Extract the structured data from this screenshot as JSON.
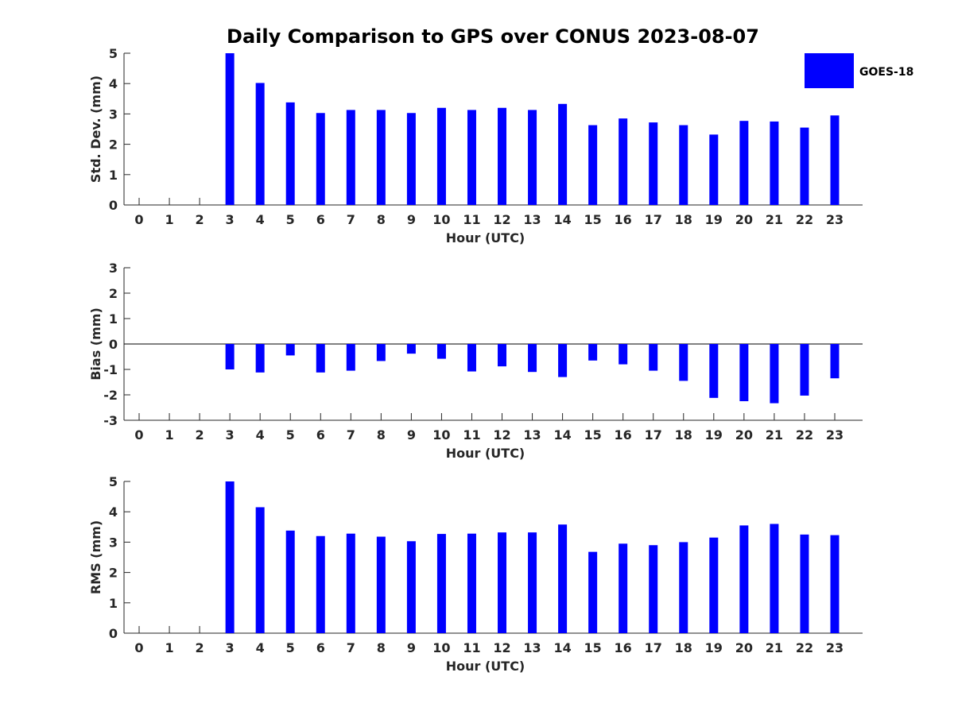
{
  "title": "Daily Comparison to GPS over CONUS 2023-08-07",
  "legend": {
    "label": "GOES-18",
    "color": "#0000ff",
    "placement": "top-right"
  },
  "chart_data": [
    {
      "type": "bar",
      "xlabel": "Hour (UTC)",
      "ylabel": "Std. Dev. (mm)",
      "ylim": [
        0,
        5
      ],
      "yticks": [
        0,
        1,
        2,
        3,
        4,
        5
      ],
      "categories": [
        0,
        1,
        2,
        3,
        4,
        5,
        6,
        7,
        8,
        9,
        10,
        11,
        12,
        13,
        14,
        15,
        16,
        17,
        18,
        19,
        20,
        21,
        22,
        23
      ],
      "series": [
        {
          "name": "GOES-18",
          "values": [
            null,
            null,
            null,
            5.0,
            4.02,
            3.38,
            3.03,
            3.13,
            3.13,
            3.03,
            3.2,
            3.13,
            3.2,
            3.13,
            3.33,
            2.63,
            2.85,
            2.72,
            2.63,
            2.32,
            2.77,
            2.75,
            2.55,
            2.95
          ]
        }
      ]
    },
    {
      "type": "bar",
      "xlabel": "Hour (UTC)",
      "ylabel": "Bias (mm)",
      "ylim": [
        -3,
        3
      ],
      "yticks": [
        -3,
        -2,
        -1,
        0,
        1,
        2,
        3
      ],
      "categories": [
        0,
        1,
        2,
        3,
        4,
        5,
        6,
        7,
        8,
        9,
        10,
        11,
        12,
        13,
        14,
        15,
        16,
        17,
        18,
        19,
        20,
        21,
        22,
        23
      ],
      "series": [
        {
          "name": "GOES-18",
          "values": [
            null,
            null,
            null,
            -1.0,
            -1.12,
            -0.45,
            -1.12,
            -1.05,
            -0.67,
            -0.38,
            -0.58,
            -1.08,
            -0.88,
            -1.1,
            -1.3,
            -0.65,
            -0.8,
            -1.05,
            -1.45,
            -2.12,
            -2.25,
            -2.33,
            -2.03,
            -1.35
          ]
        }
      ]
    },
    {
      "type": "bar",
      "xlabel": "Hour (UTC)",
      "ylabel": "RMS (mm)",
      "ylim": [
        0,
        5
      ],
      "yticks": [
        0,
        1,
        2,
        3,
        4,
        5
      ],
      "categories": [
        0,
        1,
        2,
        3,
        4,
        5,
        6,
        7,
        8,
        9,
        10,
        11,
        12,
        13,
        14,
        15,
        16,
        17,
        18,
        19,
        20,
        21,
        22,
        23
      ],
      "series": [
        {
          "name": "GOES-18",
          "values": [
            null,
            null,
            null,
            5.0,
            4.15,
            3.38,
            3.2,
            3.28,
            3.18,
            3.03,
            3.27,
            3.28,
            3.32,
            3.32,
            3.58,
            2.68,
            2.95,
            2.9,
            3.0,
            3.15,
            3.55,
            3.6,
            3.25,
            3.23
          ]
        }
      ]
    }
  ]
}
